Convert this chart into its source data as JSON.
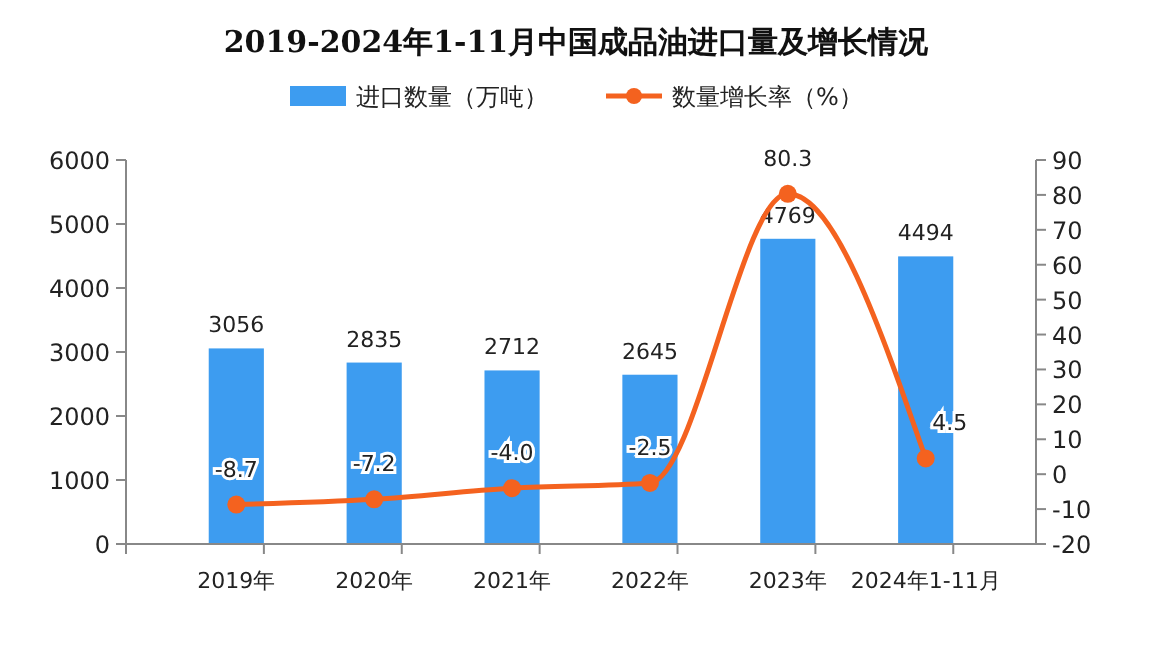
{
  "chart_data": {
    "type": "bar",
    "title": "2019-2024年1-11月中国成品油进口量及增长情况",
    "categories": [
      "2019年",
      "2020年",
      "2021年",
      "2022年",
      "2023年",
      "2024年1-11月"
    ],
    "series": [
      {
        "name": "进口数量（万吨）",
        "color": "#3d9cf0",
        "values": [
          3056,
          2835,
          2712,
          2645,
          4769,
          4494
        ]
      },
      {
        "name": "数量增长率（%）",
        "type": "line",
        "axis": "y2",
        "color": "#f4621f",
        "values": [
          -8.7,
          -7.2,
          -4.0,
          -2.5,
          80.3,
          4.5
        ],
        "value_labels": [
          "-8.7",
          "-7.2",
          "-4.0",
          "-2.5",
          "80.3",
          "4.5"
        ],
        "marker": "circle"
      }
    ],
    "ylim": [
      0,
      6000
    ],
    "yticks": [
      0,
      1000,
      2000,
      3000,
      4000,
      5000,
      6000
    ],
    "y2lim": [
      -20,
      90
    ],
    "y2ticks": [
      -20,
      -10,
      0,
      10,
      20,
      30,
      40,
      50,
      60,
      70,
      80,
      90
    ],
    "data_labels": true,
    "legend": "top",
    "grid": false
  }
}
